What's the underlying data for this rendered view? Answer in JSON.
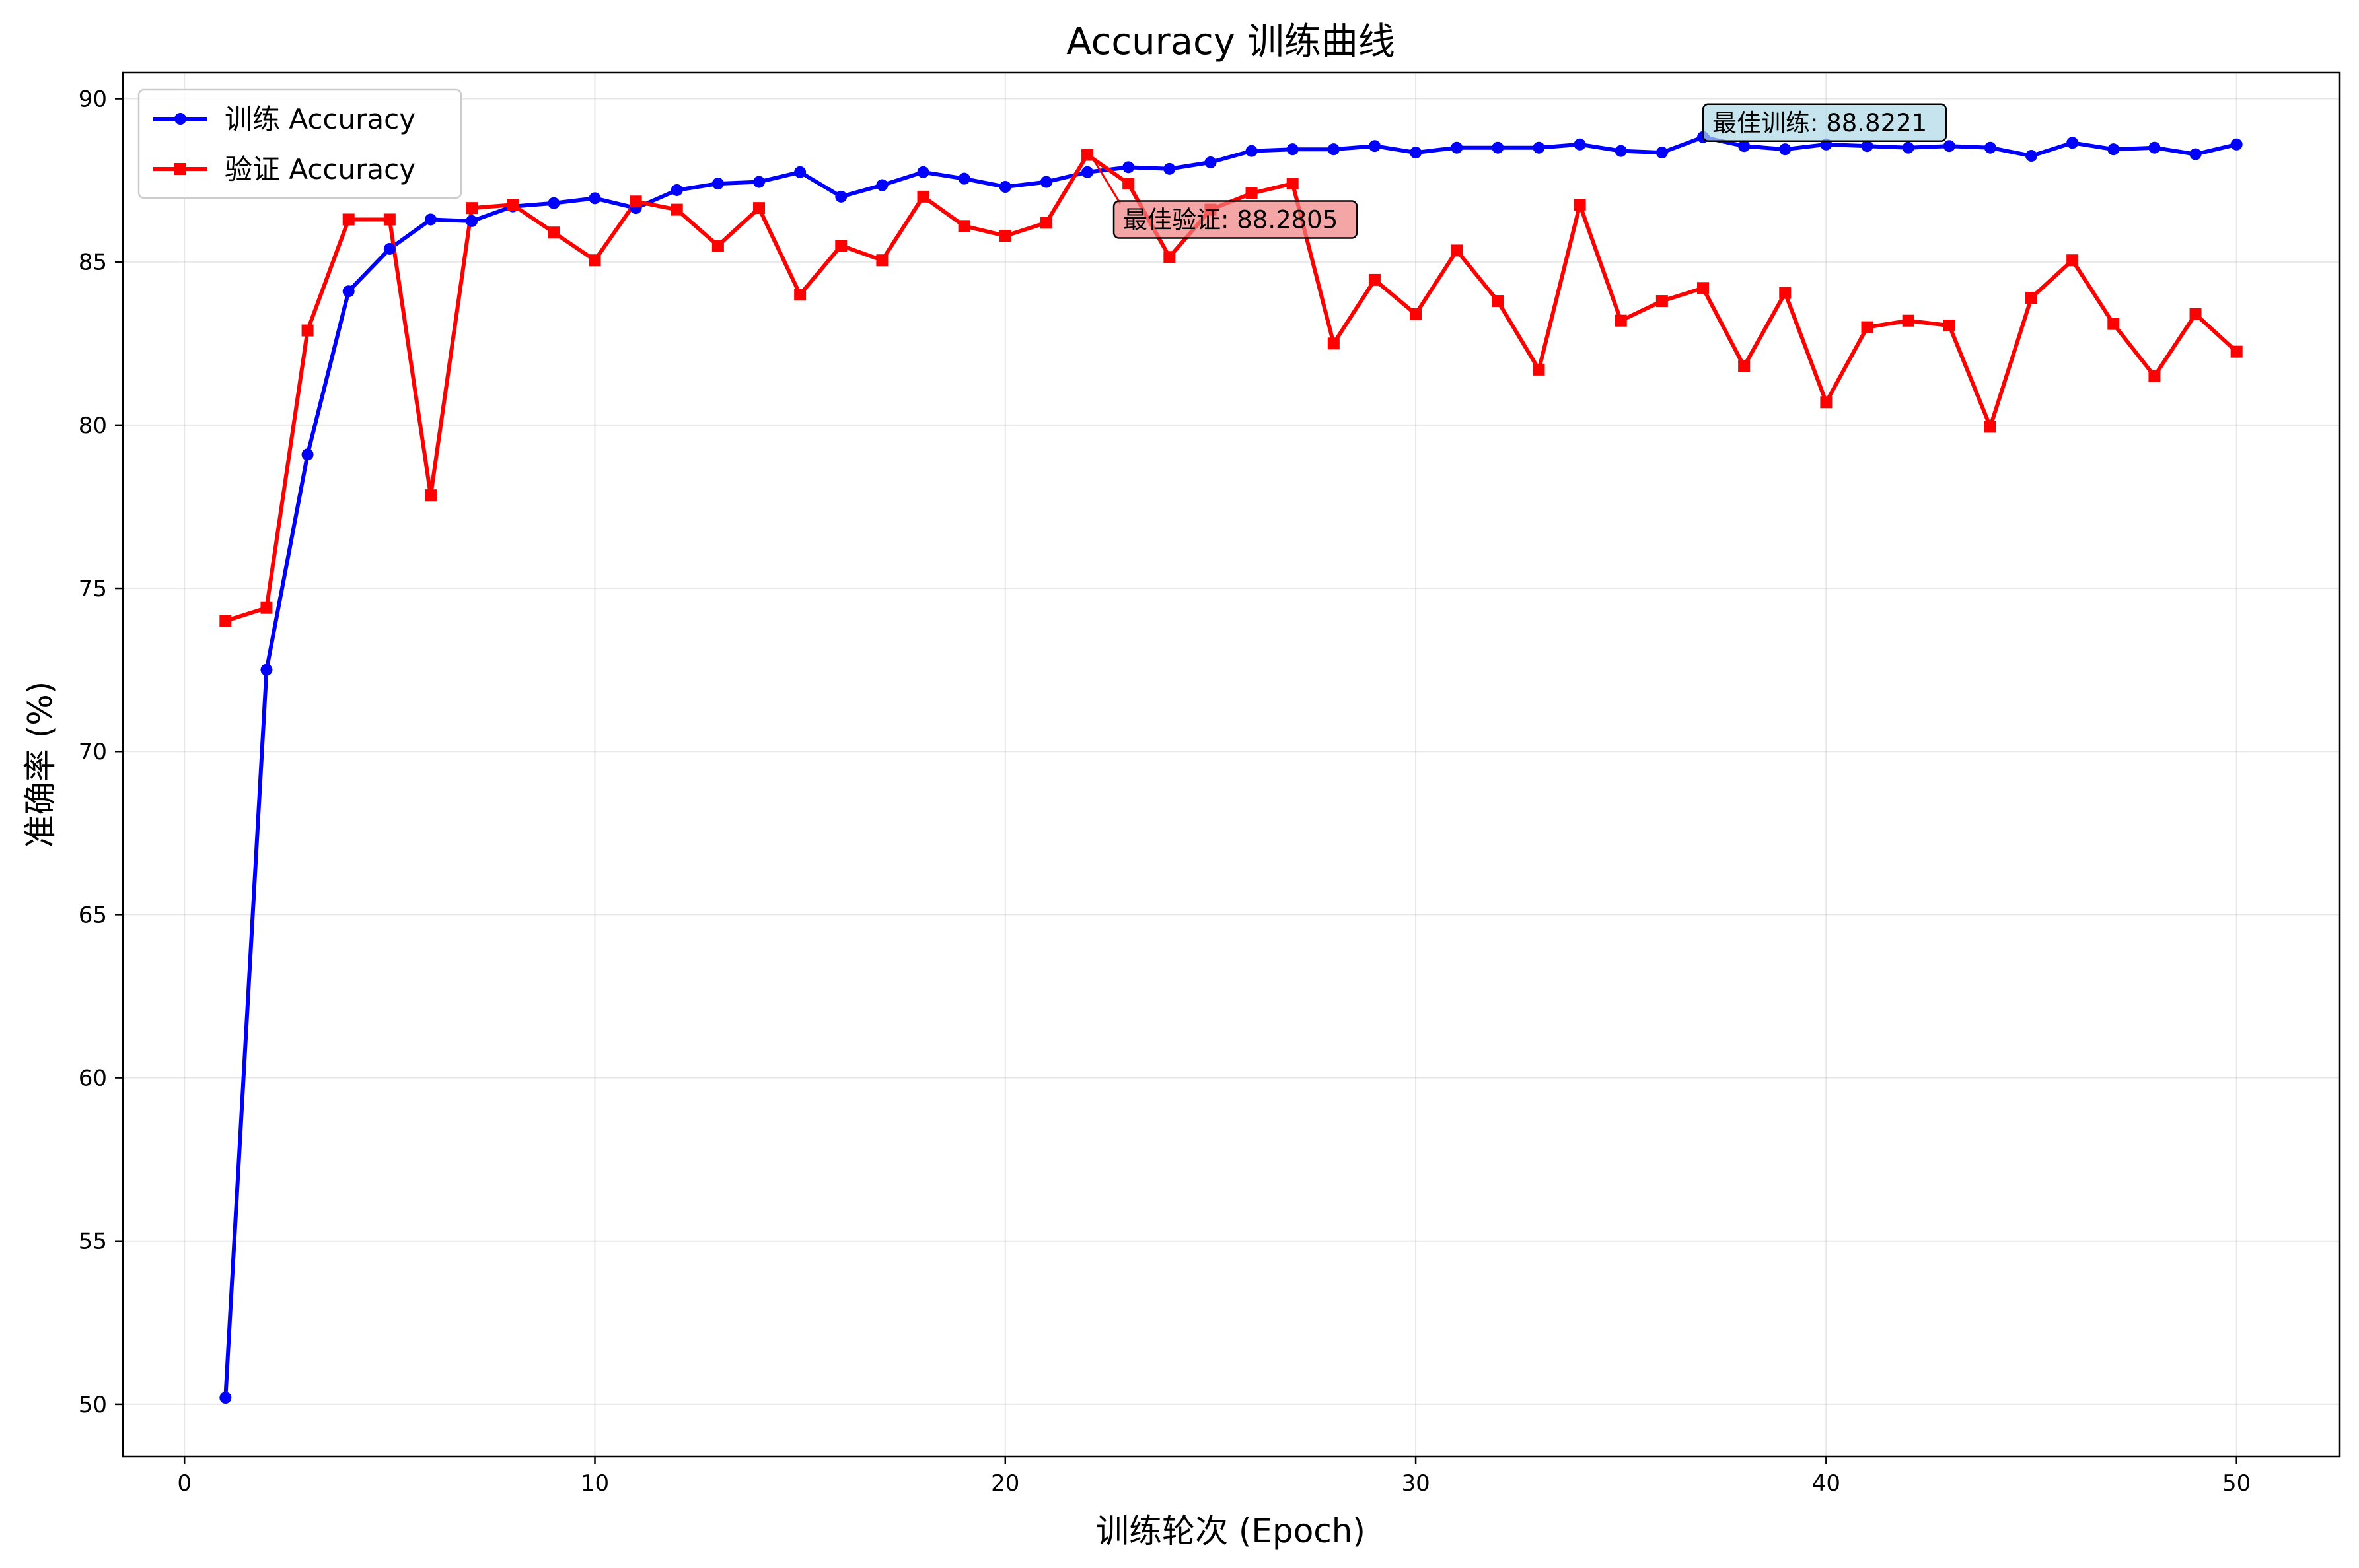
{
  "chart_data": {
    "type": "line",
    "title": "Accuracy 训练曲线",
    "xlabel": "训练轮次 (Epoch)",
    "ylabel": "准确率 (%)",
    "xlim": [
      -1.5,
      52.5
    ],
    "ylim": [
      48.4,
      90.8
    ],
    "xticks": [
      0,
      10,
      20,
      30,
      40,
      50
    ],
    "yticks": [
      50,
      55,
      60,
      65,
      70,
      75,
      80,
      85,
      90
    ],
    "grid": true,
    "legend_position": "top-left",
    "x": [
      1,
      2,
      3,
      4,
      5,
      6,
      7,
      8,
      9,
      10,
      11,
      12,
      13,
      14,
      15,
      16,
      17,
      18,
      19,
      20,
      21,
      22,
      23,
      24,
      25,
      26,
      27,
      28,
      29,
      30,
      31,
      32,
      33,
      34,
      35,
      36,
      37,
      38,
      39,
      40,
      41,
      42,
      43,
      44,
      45,
      46,
      47,
      48,
      49,
      50
    ],
    "series": [
      {
        "name": "训练 Accuracy",
        "color": "#0000ff",
        "marker": "circle",
        "values": [
          50.2,
          72.5,
          79.1,
          84.1,
          85.4,
          86.3,
          86.25,
          86.7,
          86.8,
          86.95,
          86.65,
          87.2,
          87.4,
          87.45,
          87.75,
          87.0,
          87.35,
          87.75,
          87.55,
          87.3,
          87.45,
          87.75,
          87.9,
          87.85,
          88.05,
          88.4,
          88.45,
          88.45,
          88.55,
          88.35,
          88.5,
          88.5,
          88.5,
          88.6,
          88.4,
          88.35,
          88.8221,
          88.55,
          88.45,
          88.6,
          88.55,
          88.5,
          88.55,
          88.5,
          88.25,
          88.65,
          88.45,
          88.5,
          88.3,
          88.6
        ]
      },
      {
        "name": "验证 Accuracy",
        "color": "#ff0000",
        "marker": "square",
        "values": [
          74.0,
          74.4,
          82.9,
          86.3,
          86.3,
          77.85,
          86.65,
          86.75,
          85.9,
          85.05,
          86.85,
          86.6,
          85.5,
          86.65,
          84.0,
          85.5,
          85.05,
          87.0,
          86.1,
          85.8,
          86.2,
          88.2805,
          87.4,
          85.15,
          86.6,
          87.1,
          87.4,
          82.5,
          84.45,
          83.4,
          85.35,
          83.8,
          81.7,
          86.75,
          83.2,
          83.8,
          84.2,
          81.8,
          84.05,
          80.7,
          83.0,
          83.2,
          83.05,
          79.95,
          83.9,
          85.05,
          83.1,
          81.5,
          83.4,
          82.25
        ]
      }
    ],
    "annotations": [
      {
        "text": "最佳训练: 88.8221",
        "x": 37,
        "y": 88.8221,
        "box_color": "#add8e6"
      },
      {
        "text": "最佳验证: 88.2805",
        "x": 22,
        "y": 88.2805,
        "box_color": "#f08080"
      }
    ]
  }
}
